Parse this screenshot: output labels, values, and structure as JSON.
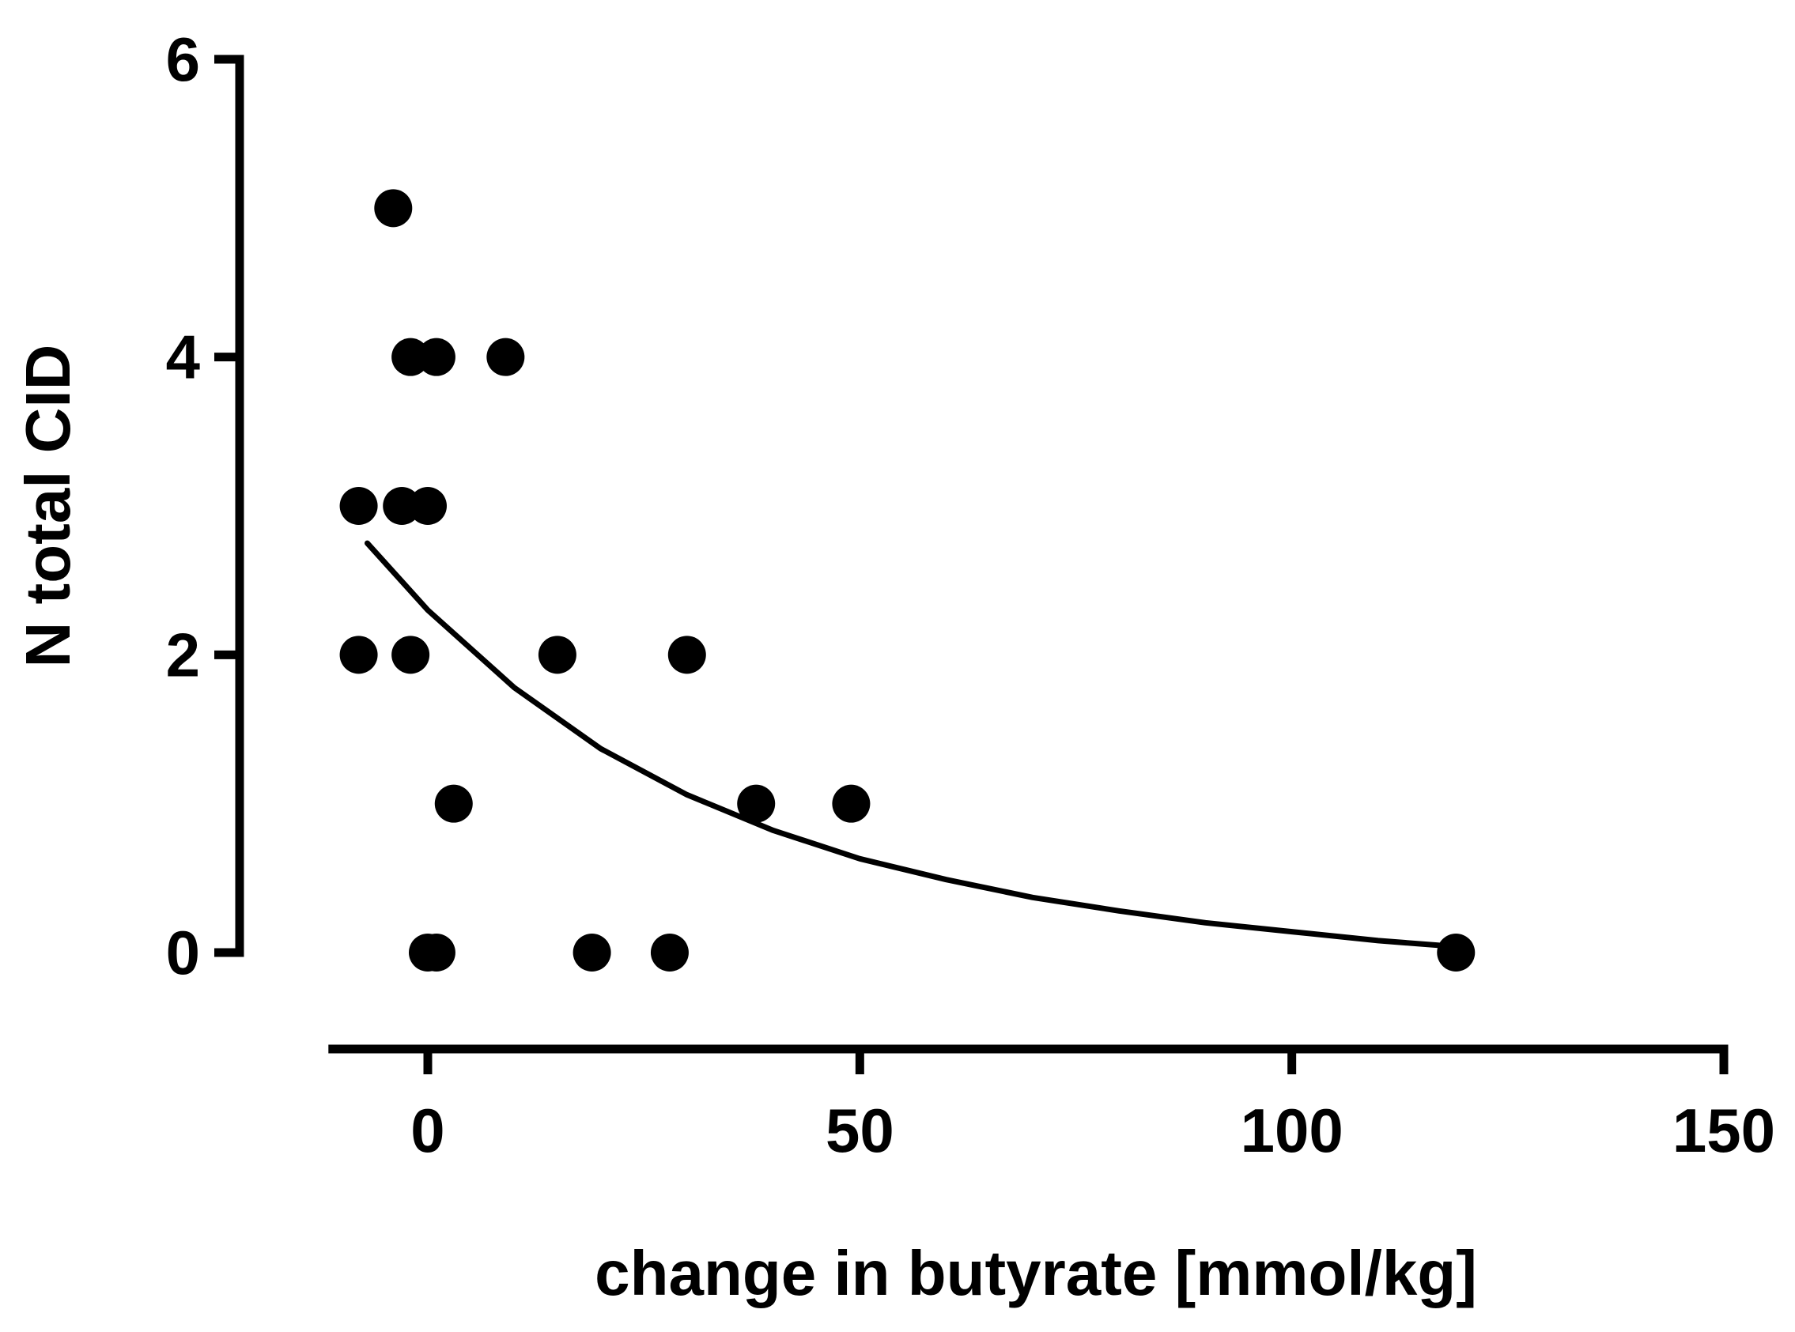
{
  "chart_data": {
    "type": "scatter",
    "title": "",
    "xlabel": "change in butyrate [mmol/kg]",
    "ylabel": "N total CID",
    "xlim": [
      -11,
      150
    ],
    "ylim": [
      0,
      6
    ],
    "x_ticks": [
      0,
      50,
      100,
      150
    ],
    "y_ticks": [
      0,
      2,
      4,
      6
    ],
    "x_tick_labels": [
      "0",
      "50",
      "100",
      "150"
    ],
    "y_tick_labels": [
      "0",
      "2",
      "4",
      "6"
    ],
    "grid": false,
    "legend": "none",
    "point_color": "#000000",
    "points": [
      {
        "x": -4,
        "y": 5
      },
      {
        "x": -2,
        "y": 4
      },
      {
        "x": 1,
        "y": 4
      },
      {
        "x": 9,
        "y": 4
      },
      {
        "x": -8,
        "y": 3
      },
      {
        "x": -3,
        "y": 3
      },
      {
        "x": 0,
        "y": 3
      },
      {
        "x": -8,
        "y": 2
      },
      {
        "x": -2,
        "y": 2
      },
      {
        "x": 15,
        "y": 2
      },
      {
        "x": 30,
        "y": 2
      },
      {
        "x": 3,
        "y": 1
      },
      {
        "x": 38,
        "y": 1
      },
      {
        "x": 49,
        "y": 1
      },
      {
        "x": 0,
        "y": 0
      },
      {
        "x": 1,
        "y": 0
      },
      {
        "x": 19,
        "y": 0
      },
      {
        "x": 28,
        "y": 0
      },
      {
        "x": 119,
        "y": 0
      }
    ],
    "fit_curve": {
      "type": "line",
      "x": [
        -7,
        0,
        10,
        20,
        30,
        40,
        50,
        60,
        70,
        80,
        90,
        100,
        110,
        119
      ],
      "y": [
        2.75,
        2.3,
        1.78,
        1.37,
        1.06,
        0.82,
        0.63,
        0.49,
        0.37,
        0.28,
        0.2,
        0.14,
        0.08,
        0.04
      ]
    }
  }
}
